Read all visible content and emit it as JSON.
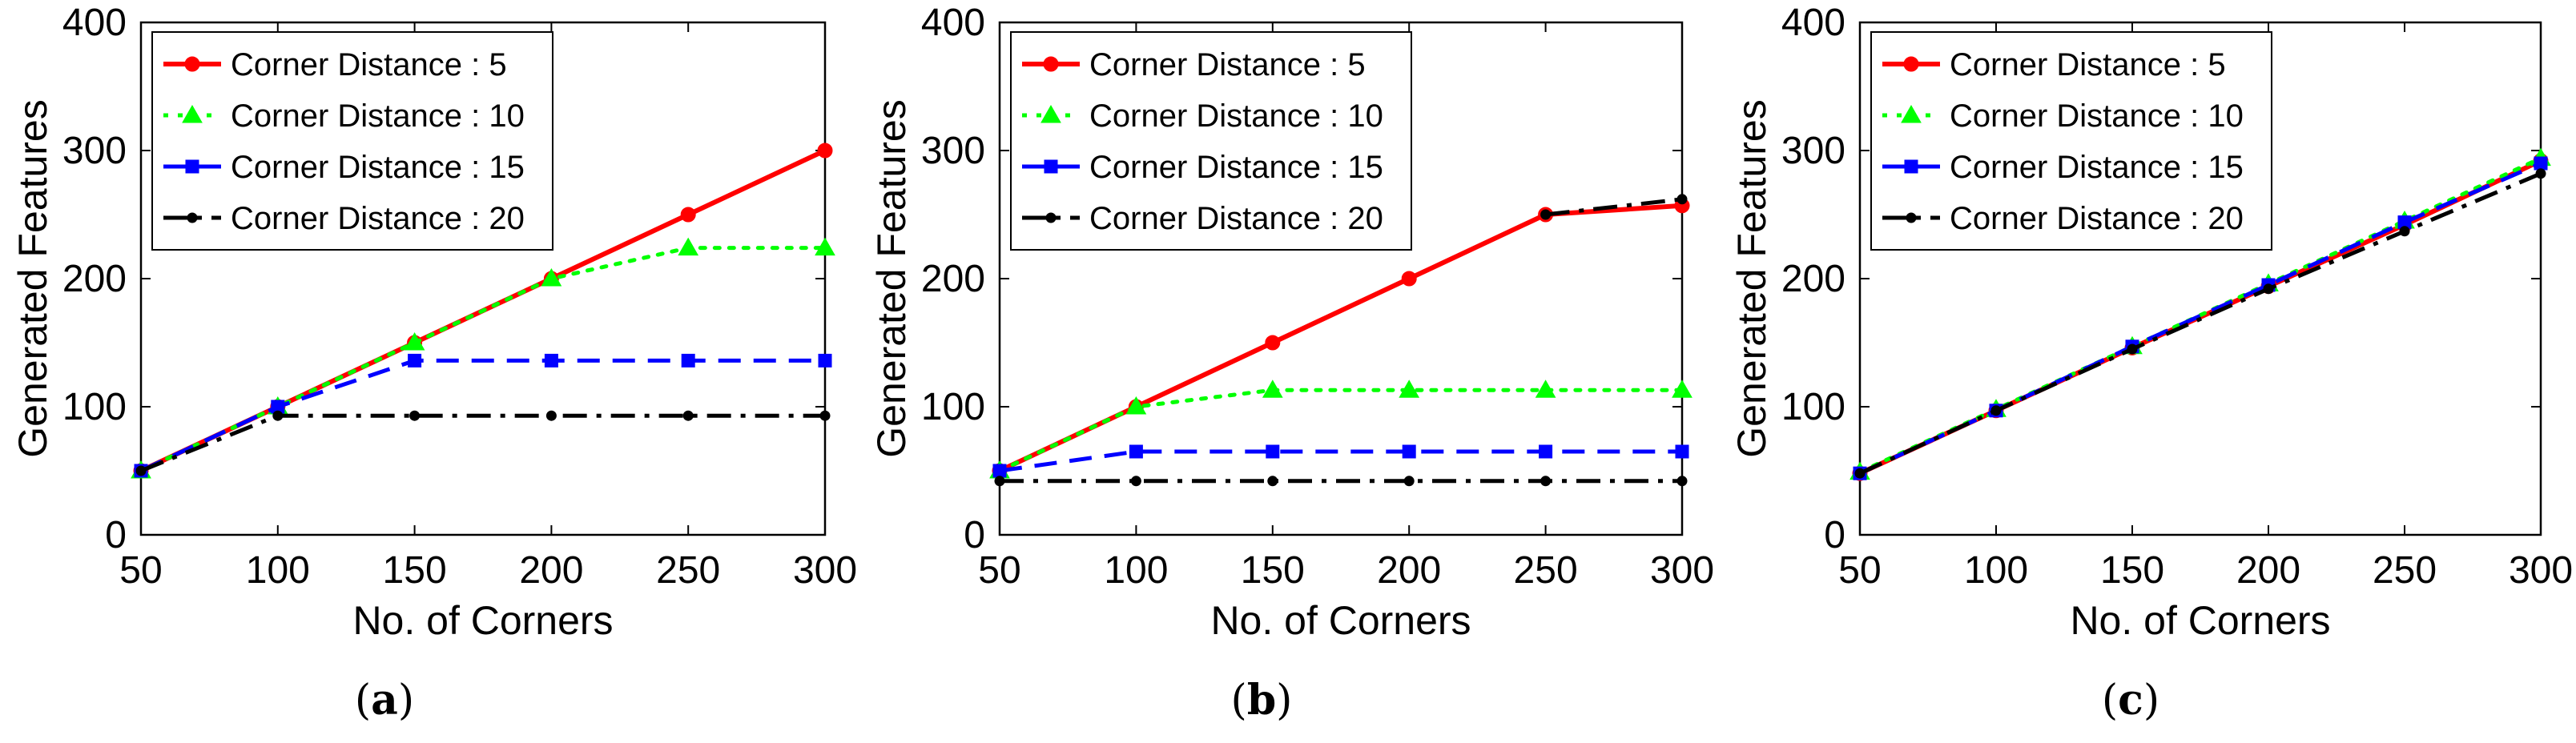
{
  "chart_data": [
    {
      "type": "line",
      "caption_letter": "a",
      "caption_open": "(",
      "caption_close": ")",
      "xlabel": "No. of Corners",
      "ylabel": "Generated Features",
      "x": [
        50,
        100,
        150,
        200,
        250,
        300
      ],
      "xlim": [
        50,
        300
      ],
      "ylim": [
        0,
        400
      ],
      "xticks": [
        "50",
        "100",
        "150",
        "200",
        "250",
        "300"
      ],
      "yticks": [
        "0",
        "100",
        "200",
        "300",
        "400"
      ],
      "grid": false,
      "legend_position": "top-left",
      "series": [
        {
          "name": "Corner Distance : 5",
          "values": [
            50,
            100,
            150,
            200,
            250,
            300
          ],
          "color": "#ff0000",
          "dash": "solid",
          "marker": "circle"
        },
        {
          "name": "Corner Distance : 10",
          "values": [
            50,
            100,
            150,
            200,
            224,
            224
          ],
          "color": "#00ff00",
          "dash": "dotted",
          "marker": "triangle"
        },
        {
          "name": "Corner Distance : 15",
          "values": [
            50,
            100,
            136,
            136,
            136,
            136
          ],
          "color": "#0000ff",
          "dash": "dashed",
          "marker": "square"
        },
        {
          "name": "Corner Distance : 20",
          "values": [
            50,
            93,
            93,
            93,
            93,
            93
          ],
          "color": "#000000",
          "dash": "dashdot",
          "marker": "dot"
        }
      ]
    },
    {
      "type": "line",
      "caption_letter": "b",
      "caption_open": "(",
      "caption_close": ")",
      "xlabel": "No. of Corners",
      "ylabel": "Generated Features",
      "x": [
        50,
        100,
        150,
        200,
        250,
        300
      ],
      "xlim": [
        50,
        300
      ],
      "ylim": [
        0,
        400
      ],
      "xticks": [
        "50",
        "100",
        "150",
        "200",
        "250",
        "300"
      ],
      "yticks": [
        "0",
        "100",
        "200",
        "300",
        "400"
      ],
      "grid": false,
      "legend_position": "top-left",
      "series": [
        {
          "name": "Corner Distance : 5",
          "values": [
            50,
            100,
            150,
            200,
            250,
            257
          ],
          "color": "#ff0000",
          "dash": "solid",
          "marker": "circle"
        },
        {
          "name": "Corner Distance : 10",
          "values": [
            50,
            100,
            113,
            113,
            113,
            113
          ],
          "color": "#00ff00",
          "dash": "dotted",
          "marker": "triangle"
        },
        {
          "name": "Corner Distance : 15",
          "values": [
            50,
            65,
            65,
            65,
            65,
            65
          ],
          "color": "#0000ff",
          "dash": "dashed",
          "marker": "square"
        },
        {
          "name": "Corner Distance : 20",
          "values": [
            42,
            42,
            42,
            42,
            42,
            42
          ],
          "color": "#000000",
          "dash": "dashdot",
          "marker": "dot"
        },
        {
          "name": "",
          "values": [
            null,
            null,
            null,
            null,
            250,
            262
          ],
          "color": "#000000",
          "dash": "dashdot",
          "marker": "dot",
          "overlay_of": "Corner Distance : 20"
        }
      ]
    },
    {
      "type": "line",
      "caption_letter": "c",
      "caption_open": "(",
      "caption_close": ")",
      "xlabel": "No. of Corners",
      "ylabel": "Generated Features",
      "x": [
        50,
        100,
        150,
        200,
        250,
        300
      ],
      "xlim": [
        50,
        300
      ],
      "ylim": [
        0,
        400
      ],
      "xticks": [
        "50",
        "100",
        "150",
        "200",
        "250",
        "300"
      ],
      "yticks": [
        "0",
        "100",
        "200",
        "300",
        "400"
      ],
      "grid": false,
      "legend_position": "top-left",
      "series": [
        {
          "name": "Corner Distance : 5",
          "values": [
            48,
            97,
            146,
            194,
            242,
            292
          ],
          "color": "#ff0000",
          "dash": "solid",
          "marker": "circle"
        },
        {
          "name": "Corner Distance : 10",
          "values": [
            49,
            98,
            147,
            196,
            245,
            294
          ],
          "color": "#00ff00",
          "dash": "dotted",
          "marker": "triangle"
        },
        {
          "name": "Corner Distance : 15",
          "values": [
            48,
            97,
            147,
            195,
            244,
            290
          ],
          "color": "#0000ff",
          "dash": "dashed",
          "marker": "square"
        },
        {
          "name": "Corner Distance : 20",
          "values": [
            48,
            97,
            145,
            192,
            237,
            282
          ],
          "color": "#000000",
          "dash": "dashdot",
          "marker": "dot"
        }
      ]
    }
  ]
}
